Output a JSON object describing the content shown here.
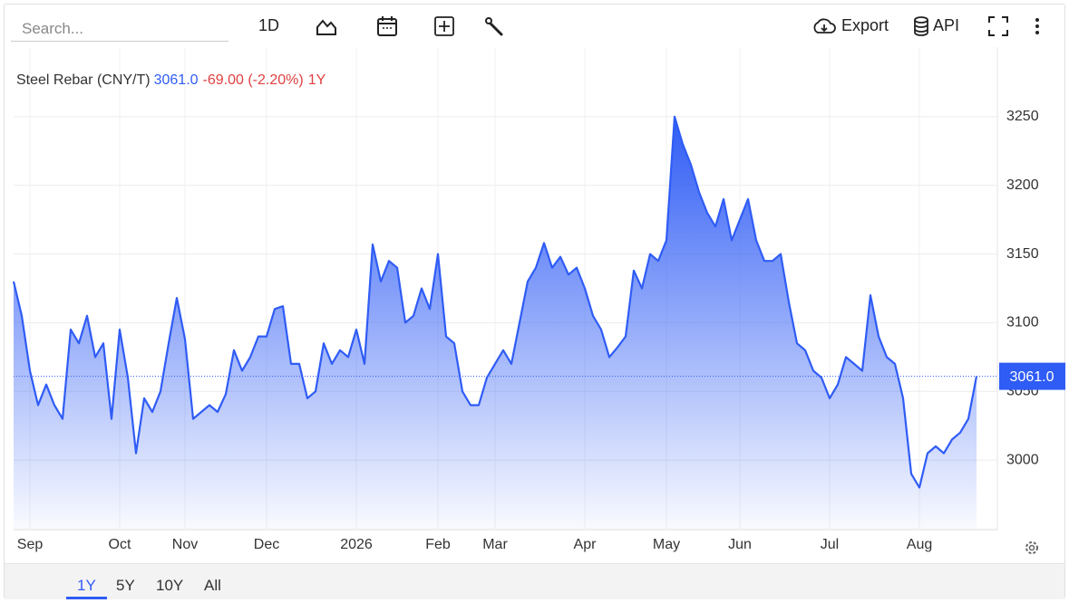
{
  "toolbar": {
    "search_placeholder": "Search...",
    "interval": "1D",
    "export": "Export",
    "api": "API"
  },
  "range_buttons": [
    "1Y",
    "5Y",
    "10Y",
    "All"
  ],
  "chart_data": {
    "type": "area",
    "title": "Steel Rebar (CNY/T)",
    "price": "3061.0",
    "change": "-69.00 (-2.20%)",
    "range": "1Y",
    "categories": [
      null,
      null,
      "Sep",
      null,
      null,
      null,
      null,
      null,
      null,
      null,
      null,
      null,
      null,
      "Oct",
      null,
      null,
      null,
      null,
      null,
      null,
      null,
      "Nov",
      null,
      null,
      null,
      null,
      null,
      null,
      null,
      null,
      null,
      "Dec",
      null,
      null,
      null,
      null,
      null,
      null,
      null,
      null,
      null,
      null,
      "2026",
      null,
      null,
      null,
      null,
      null,
      null,
      null,
      null,
      null,
      "Feb",
      null,
      null,
      null,
      null,
      null,
      null,
      "Mar",
      null,
      null,
      null,
      null,
      null,
      null,
      null,
      null,
      null,
      null,
      "Apr",
      null,
      null,
      null,
      null,
      null,
      null,
      null,
      null,
      null,
      "May",
      null,
      null,
      null,
      null,
      null,
      null,
      null,
      null,
      "Jun",
      null,
      null,
      null,
      null,
      null,
      null,
      null,
      null,
      null,
      null,
      "Jul",
      null,
      null,
      null,
      null,
      null,
      null,
      null,
      null,
      null,
      null,
      "Aug",
      null,
      null,
      null,
      null,
      null,
      null,
      null
    ],
    "series": [
      {
        "name": "Steel Rebar",
        "color": "#2f5cf5",
        "values": [
          3130,
          3105,
          3065,
          3040,
          3055,
          3040,
          3030,
          3095,
          3085,
          3105,
          3075,
          3085,
          3030,
          3095,
          3060,
          3005,
          3045,
          3035,
          3050,
          3085,
          3118,
          3088,
          3030,
          3035,
          3040,
          3035,
          3048,
          3080,
          3065,
          3075,
          3090,
          3090,
          3110,
          3112,
          3070,
          3070,
          3045,
          3050,
          3085,
          3070,
          3080,
          3075,
          3095,
          3070,
          3157,
          3130,
          3145,
          3140,
          3100,
          3105,
          3125,
          3110,
          3150,
          3090,
          3085,
          3050,
          3040,
          3040,
          3060,
          3070,
          3080,
          3070,
          3100,
          3130,
          3140,
          3158,
          3140,
          3148,
          3135,
          3140,
          3125,
          3105,
          3095,
          3075,
          3082,
          3090,
          3138,
          3125,
          3150,
          3145,
          3160,
          3250,
          3230,
          3215,
          3195,
          3180,
          3170,
          3190,
          3160,
          3175,
          3190,
          3160,
          3145,
          3145,
          3150,
          3115,
          3085,
          3080,
          3065,
          3060,
          3045,
          3055,
          3075,
          3070,
          3065,
          3120,
          3090,
          3075,
          3070,
          3045,
          2990,
          2980,
          3005,
          3010,
          3005,
          3015,
          3020,
          3030,
          3061
        ]
      }
    ],
    "ylim": [
      2950,
      3300
    ],
    "yticks": [
      3000,
      3050,
      3100,
      3150,
      3200,
      3250
    ],
    "grid": true
  }
}
